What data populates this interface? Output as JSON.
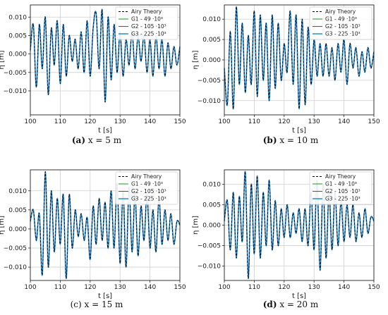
{
  "chart_data": [
    {
      "type": "line",
      "caption_letter": "(a)",
      "caption_text": " x = 5 m",
      "xlabel": "t [s]",
      "ylabel": "η [m]",
      "xlim": [
        100,
        150
      ],
      "ylim": [
        -0.0165,
        0.0133
      ],
      "xticks": [
        100,
        110,
        120,
        130,
        140,
        150
      ],
      "yticks": [
        -0.01,
        -0.005,
        0.0,
        0.005,
        0.01
      ],
      "ytick_labels": [
        "−0.010",
        "−0.005",
        "0.000",
        "0.005",
        "0.010"
      ],
      "grid": true,
      "legend_position": "top-right",
      "series": [
        {
          "name": "Airy Theory",
          "color": "#000000",
          "dash": true
        },
        {
          "name": "G1 - 49 ·10³",
          "color": "#2ca02c"
        },
        {
          "name": "G2 - 105 ·10³",
          "color": "#d62728"
        },
        {
          "name": "G3 - 225 ·10³",
          "color": "#1f8fde"
        }
      ],
      "x": [
        100,
        101,
        102,
        103,
        104,
        105,
        106,
        107,
        108,
        109,
        110,
        111,
        112,
        113,
        114,
        115,
        116,
        117,
        118,
        119,
        120,
        121,
        122,
        123,
        124,
        125,
        126,
        127,
        128,
        129,
        130,
        131,
        132,
        133,
        134,
        135,
        136,
        137,
        138,
        139,
        140,
        141,
        142,
        143,
        144,
        145,
        146,
        147,
        148,
        149,
        150
      ],
      "values": [
        0.001,
        0.008,
        -0.009,
        0.008,
        -0.004,
        0.01,
        -0.011,
        0.007,
        -0.003,
        0.009,
        -0.008,
        0.008,
        -0.006,
        0.005,
        -0.002,
        0.004,
        -0.004,
        0.006,
        -0.005,
        0.009,
        -0.006,
        0.007,
        0.011,
        -0.004,
        0.012,
        -0.013,
        0.01,
        -0.007,
        0.008,
        -0.005,
        0.006,
        -0.006,
        0.004,
        -0.003,
        0.006,
        -0.004,
        0.005,
        -0.002,
        0.005,
        -0.005,
        0.004,
        -0.006,
        0.005,
        -0.004,
        0.004,
        -0.006,
        0.003,
        -0.004,
        0.002,
        -0.003,
        0.002
      ]
    },
    {
      "type": "line",
      "caption_letter": "(b)",
      "caption_text": " x = 10 m",
      "xlabel": "t [s]",
      "ylabel": "η [m]",
      "xlim": [
        100,
        150
      ],
      "ylim": [
        -0.0135,
        0.0135
      ],
      "xticks": [
        100,
        110,
        120,
        130,
        140,
        150
      ],
      "yticks": [
        -0.01,
        -0.005,
        0.0,
        0.005,
        0.01
      ],
      "ytick_labels": [
        "−0.010",
        "−0.005",
        "0.000",
        "0.005",
        "0.010"
      ],
      "grid": true,
      "legend_position": "top-right",
      "series": [
        {
          "name": "Airy Theory",
          "color": "#000000",
          "dash": true
        },
        {
          "name": "G1 - 49 ·10³",
          "color": "#2ca02c"
        },
        {
          "name": "G2 - 105 ·10³",
          "color": "#d62728"
        },
        {
          "name": "G3 - 225 ·10³",
          "color": "#1f8fde"
        }
      ],
      "x": [
        100,
        101,
        102,
        103,
        104,
        105,
        106,
        107,
        108,
        109,
        110,
        111,
        112,
        113,
        114,
        115,
        116,
        117,
        118,
        119,
        120,
        121,
        122,
        123,
        124,
        125,
        126,
        127,
        128,
        129,
        130,
        131,
        132,
        133,
        134,
        135,
        136,
        137,
        138,
        139,
        140,
        141,
        142,
        143,
        144,
        145,
        146,
        147,
        148,
        149,
        150
      ],
      "values": [
        -0.002,
        -0.011,
        0.007,
        -0.012,
        0.013,
        -0.006,
        0.009,
        -0.008,
        0.006,
        -0.006,
        0.012,
        -0.009,
        0.011,
        -0.005,
        0.009,
        -0.01,
        0.011,
        -0.007,
        0.009,
        -0.005,
        0.004,
        -0.003,
        0.012,
        -0.006,
        0.011,
        -0.012,
        0.01,
        -0.011,
        0.008,
        -0.006,
        0.005,
        -0.004,
        0.004,
        -0.004,
        0.004,
        -0.004,
        0.003,
        -0.005,
        0.004,
        -0.003,
        0.005,
        -0.006,
        0.004,
        -0.002,
        0.003,
        -0.004,
        0.002,
        -0.003,
        0.003,
        -0.002,
        0.002
      ]
    },
    {
      "type": "line",
      "caption_letter": "(c)",
      "caption_text": " x = 15 m",
      "xlabel": "t [s]",
      "ylabel": "η [m]",
      "xlim": [
        100,
        150
      ],
      "ylim": [
        -0.0135,
        0.0155
      ],
      "xticks": [
        100,
        110,
        120,
        130,
        140,
        150
      ],
      "yticks": [
        -0.01,
        -0.005,
        0.0,
        0.005,
        0.01
      ],
      "ytick_labels": [
        "−0.010",
        "−0.005",
        "0.000",
        "0.005",
        "0.010"
      ],
      "grid": true,
      "legend_position": "top-right",
      "series": [
        {
          "name": "Airy Theory",
          "color": "#000000",
          "dash": true
        },
        {
          "name": "G1 - 49 ·10³",
          "color": "#2ca02c"
        },
        {
          "name": "G2 - 105 ·10³",
          "color": "#d62728"
        },
        {
          "name": "G3 - 225 ·10³",
          "color": "#1f8fde"
        }
      ],
      "x": [
        100,
        101,
        102,
        103,
        104,
        105,
        106,
        107,
        108,
        109,
        110,
        111,
        112,
        113,
        114,
        115,
        116,
        117,
        118,
        119,
        120,
        121,
        122,
        123,
        124,
        125,
        126,
        127,
        128,
        129,
        130,
        131,
        132,
        133,
        134,
        135,
        136,
        137,
        138,
        139,
        140,
        141,
        142,
        143,
        144,
        145,
        146,
        147,
        148,
        149,
        150
      ],
      "values": [
        0.002,
        0.005,
        -0.003,
        0.004,
        -0.012,
        0.015,
        -0.01,
        0.01,
        -0.006,
        0.008,
        -0.004,
        0.009,
        -0.013,
        0.009,
        -0.005,
        0.005,
        -0.002,
        0.004,
        -0.003,
        0.003,
        -0.008,
        0.006,
        -0.004,
        0.008,
        -0.003,
        0.007,
        -0.005,
        0.01,
        -0.005,
        0.012,
        -0.009,
        0.01,
        -0.01,
        0.011,
        -0.006,
        0.009,
        -0.007,
        0.006,
        -0.003,
        0.009,
        -0.005,
        0.005,
        -0.006,
        0.008,
        -0.004,
        0.005,
        -0.003,
        0.004,
        -0.004,
        0.002,
        0.001
      ]
    },
    {
      "type": "line",
      "caption_letter": "(d)",
      "caption_text": " x = 20 m",
      "xlabel": "t [s]",
      "ylabel": "η [m]",
      "xlim": [
        100,
        150
      ],
      "ylim": [
        -0.0135,
        0.0135
      ],
      "xticks": [
        100,
        110,
        120,
        130,
        140,
        150
      ],
      "yticks": [
        -0.01,
        -0.005,
        0.0,
        0.005,
        0.01
      ],
      "ytick_labels": [
        "−0.010",
        "−0.005",
        "0.000",
        "0.005",
        "0.010"
      ],
      "grid": true,
      "legend_position": "top-right",
      "series": [
        {
          "name": "Airy Theory",
          "color": "#000000",
          "dash": true
        },
        {
          "name": "G1 - 49 ·10³",
          "color": "#2ca02c"
        },
        {
          "name": "G2 - 105 ·10³",
          "color": "#d62728"
        },
        {
          "name": "G3 - 225 ·10³",
          "color": "#1f8fde"
        }
      ],
      "x": [
        100,
        101,
        102,
        103,
        104,
        105,
        106,
        107,
        108,
        109,
        110,
        111,
        112,
        113,
        114,
        115,
        116,
        117,
        118,
        119,
        120,
        121,
        122,
        123,
        124,
        125,
        126,
        127,
        128,
        129,
        130,
        131,
        132,
        133,
        134,
        135,
        136,
        137,
        138,
        139,
        140,
        141,
        142,
        143,
        144,
        145,
        146,
        147,
        148,
        149,
        150
      ],
      "values": [
        0.001,
        0.006,
        -0.006,
        0.008,
        -0.008,
        0.007,
        -0.004,
        0.013,
        -0.013,
        0.01,
        -0.007,
        0.012,
        -0.008,
        0.008,
        -0.005,
        0.011,
        -0.006,
        0.006,
        -0.005,
        0.004,
        -0.003,
        0.005,
        -0.003,
        0.003,
        -0.002,
        0.004,
        -0.004,
        0.004,
        -0.005,
        0.008,
        -0.006,
        0.011,
        -0.011,
        0.01,
        -0.008,
        0.008,
        -0.006,
        0.008,
        -0.005,
        0.006,
        -0.004,
        0.005,
        -0.003,
        0.005,
        -0.004,
        0.003,
        -0.003,
        0.004,
        -0.002,
        0.002,
        0.001
      ]
    }
  ]
}
